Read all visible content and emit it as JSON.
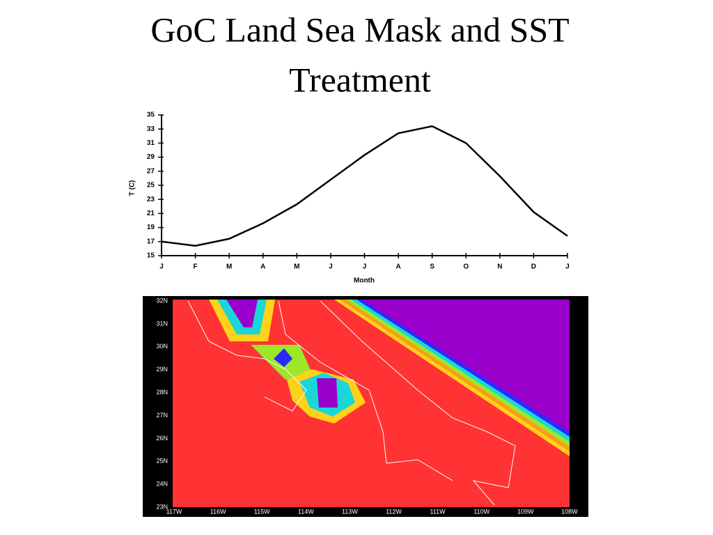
{
  "title": "GoC Land Sea Mask and SST Treatment",
  "chart_data": {
    "type": "line",
    "x_label": "Month",
    "y_label": "T (C)",
    "categories": [
      "J",
      "F",
      "M",
      "A",
      "M",
      "J",
      "J",
      "A",
      "S",
      "O",
      "N",
      "D",
      "J"
    ],
    "series": [
      {
        "name": "SST",
        "color": "#000000",
        "values": [
          17,
          16.4,
          17.4,
          19.6,
          22.3,
          25.8,
          29.3,
          32.4,
          33.4,
          31,
          26.3,
          21.2,
          17.8
        ]
      }
    ],
    "ylim": [
      15,
      35
    ],
    "yticks": [
      15,
      17,
      19,
      21,
      23,
      25,
      27,
      29,
      31,
      33,
      35
    ],
    "grid": false
  },
  "map": {
    "y_labels": [
      "32N",
      "31N",
      "30N",
      "29N",
      "28N",
      "27N",
      "26N",
      "25N",
      "24N",
      "23N"
    ],
    "x_labels": [
      "117W",
      "116W",
      "115W",
      "114W",
      "113W",
      "112W",
      "111W",
      "110W",
      "109W",
      "108W"
    ]
  }
}
